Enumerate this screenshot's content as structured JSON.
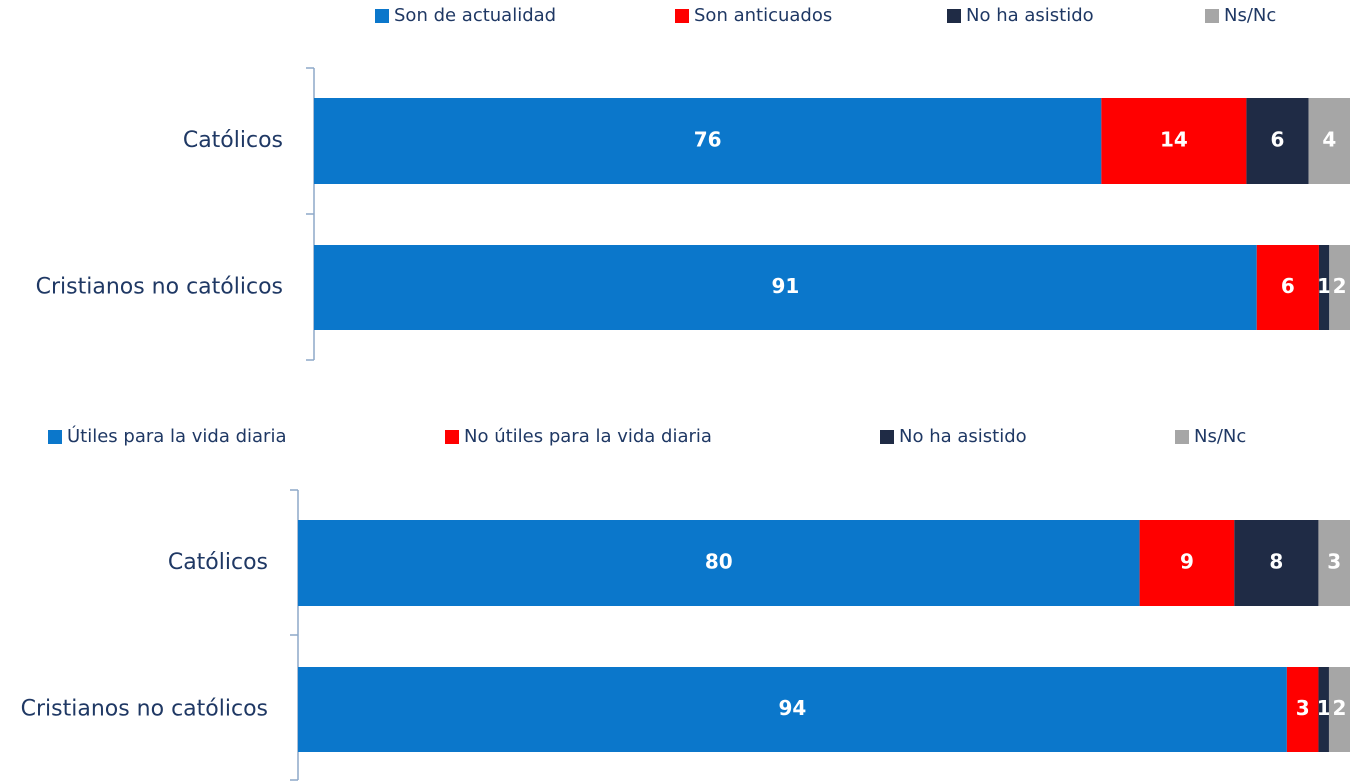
{
  "chart_data": [
    {
      "type": "bar",
      "orientation": "horizontal",
      "stacked": true,
      "categories": [
        "Católicos",
        "Cristianos no católicos"
      ],
      "xlim": [
        0,
        100
      ],
      "series": [
        {
          "name": "Son de actualidad",
          "color": "#0b77cb",
          "values": [
            76,
            91
          ]
        },
        {
          "name": "Son anticuados",
          "color": "#ff0000",
          "values": [
            14,
            6
          ]
        },
        {
          "name": "No ha asistido",
          "color": "#1f2b45",
          "values": [
            6,
            1
          ]
        },
        {
          "name": "Ns/Nc",
          "color": "#a6a6a6",
          "values": [
            4,
            2
          ]
        }
      ]
    },
    {
      "type": "bar",
      "orientation": "horizontal",
      "stacked": true,
      "categories": [
        "Católicos",
        "Cristianos no católicos"
      ],
      "xlim": [
        0,
        100
      ],
      "series": [
        {
          "name": "Útiles para la vida diaria",
          "color": "#0b77cb",
          "values": [
            80,
            94
          ]
        },
        {
          "name": "No útiles para la vida diaria",
          "color": "#ff0000",
          "values": [
            9,
            3
          ]
        },
        {
          "name": "No ha asistido",
          "color": "#1f2b45",
          "values": [
            8,
            1
          ]
        },
        {
          "name": "Ns/Nc",
          "color": "#a6a6a6",
          "values": [
            3,
            2
          ]
        }
      ]
    }
  ]
}
